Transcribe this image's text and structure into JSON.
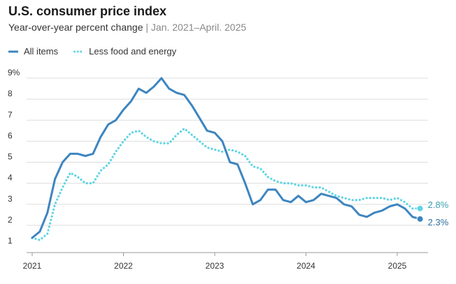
{
  "title": "U.S. consumer price index",
  "subtitle": "Year-over-year percent change",
  "subtitle_separator": "|",
  "subtitle_range": "Jan. 2021–April. 2025",
  "colors": {
    "all_items": "#3d85c0",
    "core": "#5fd4e4",
    "grid": "#dddddd",
    "axis": "#999999",
    "text": "#333333"
  },
  "chart_data": {
    "type": "line",
    "title": "U.S. consumer price index",
    "subtitle": "Year-over-year percent change | Jan. 2021–April. 2025",
    "xlabel": "",
    "ylabel": "",
    "ylim": [
      1,
      9
    ],
    "y_ticks": [
      1,
      2,
      3,
      4,
      5,
      6,
      7,
      8,
      9
    ],
    "y_tick_labels": [
      "1",
      "2",
      "3",
      "4",
      "5",
      "6",
      "7",
      "8",
      "9%"
    ],
    "x_ticks": [
      "2021",
      "2022",
      "2023",
      "2024",
      "2025"
    ],
    "x": [
      "2021-01",
      "2021-02",
      "2021-03",
      "2021-04",
      "2021-05",
      "2021-06",
      "2021-07",
      "2021-08",
      "2021-09",
      "2021-10",
      "2021-11",
      "2021-12",
      "2022-01",
      "2022-02",
      "2022-03",
      "2022-04",
      "2022-05",
      "2022-06",
      "2022-07",
      "2022-08",
      "2022-09",
      "2022-10",
      "2022-11",
      "2022-12",
      "2023-01",
      "2023-02",
      "2023-03",
      "2023-04",
      "2023-05",
      "2023-06",
      "2023-07",
      "2023-08",
      "2023-09",
      "2023-10",
      "2023-11",
      "2023-12",
      "2024-01",
      "2024-02",
      "2024-03",
      "2024-04",
      "2024-05",
      "2024-06",
      "2024-07",
      "2024-08",
      "2024-09",
      "2024-10",
      "2024-11",
      "2024-12",
      "2025-01",
      "2025-02",
      "2025-03",
      "2025-04"
    ],
    "grid": true,
    "legend": "top-left",
    "series": [
      {
        "name": "All items",
        "style": "solid",
        "values": [
          1.4,
          1.7,
          2.6,
          4.2,
          5.0,
          5.4,
          5.4,
          5.3,
          5.4,
          6.2,
          6.8,
          7.0,
          7.5,
          7.9,
          8.5,
          8.3,
          8.6,
          9.0,
          8.5,
          8.3,
          8.2,
          7.7,
          7.1,
          6.5,
          6.4,
          6.0,
          5.0,
          4.9,
          4.0,
          3.0,
          3.2,
          3.7,
          3.7,
          3.2,
          3.1,
          3.4,
          3.1,
          3.2,
          3.5,
          3.4,
          3.3,
          3.0,
          2.9,
          2.5,
          2.4,
          2.6,
          2.7,
          2.9,
          3.0,
          2.8,
          2.4,
          2.3
        ],
        "end_label": "2.3%"
      },
      {
        "name": "Less food and energy",
        "style": "dotted",
        "values": [
          1.4,
          1.3,
          1.6,
          3.0,
          3.8,
          4.5,
          4.3,
          4.0,
          4.0,
          4.6,
          4.9,
          5.5,
          6.0,
          6.4,
          6.5,
          6.2,
          6.0,
          5.9,
          5.9,
          6.3,
          6.6,
          6.3,
          6.0,
          5.7,
          5.6,
          5.5,
          5.6,
          5.5,
          5.3,
          4.8,
          4.7,
          4.3,
          4.1,
          4.0,
          4.0,
          3.9,
          3.9,
          3.8,
          3.8,
          3.6,
          3.4,
          3.3,
          3.2,
          3.2,
          3.3,
          3.3,
          3.3,
          3.2,
          3.3,
          3.1,
          2.8,
          2.8
        ],
        "end_label": "2.8%"
      }
    ]
  }
}
